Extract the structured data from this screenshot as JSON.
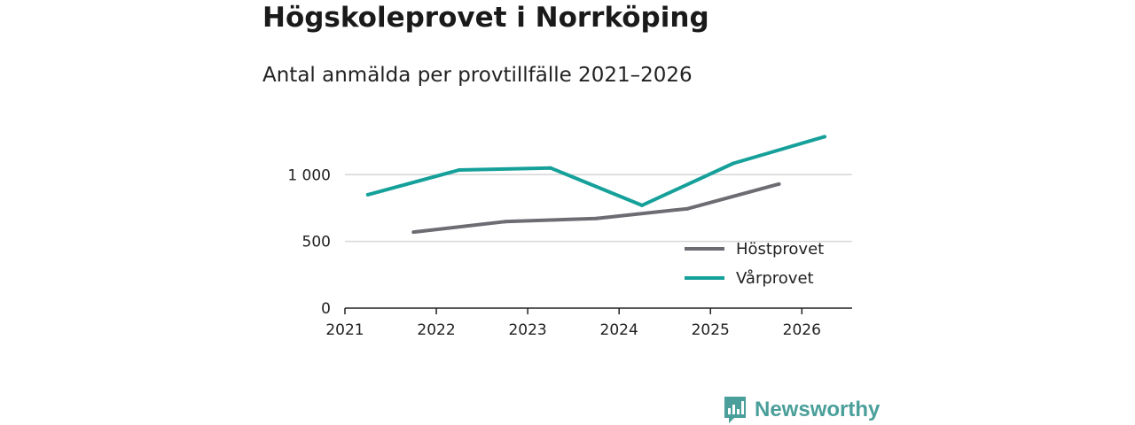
{
  "chart_data": {
    "type": "line",
    "title": "Högskoleprovet i Norrköping",
    "subtitle": "Antal anmälda per provtillfälle 2021–2026",
    "x_tick_labels": [
      "2021",
      "2022",
      "2023",
      "2024",
      "2025",
      "2026"
    ],
    "y_tick_labels": [
      "0",
      "500",
      "1 000"
    ],
    "y_ticks": [
      0,
      500,
      1000
    ],
    "ylim": [
      0,
      1380
    ],
    "xlim": [
      2021,
      2026.55
    ],
    "grid": true,
    "legend_position": "inside-right",
    "series": [
      {
        "name": "Höstprovet",
        "color": "#6d6c73",
        "points": [
          {
            "x": 2021.75,
            "y": 570
          },
          {
            "x": 2022.75,
            "y": 648
          },
          {
            "x": 2023.75,
            "y": 672
          },
          {
            "x": 2024.75,
            "y": 745
          },
          {
            "x": 2025.75,
            "y": 930
          }
        ]
      },
      {
        "name": "Vårprovet",
        "color": "#16a09a",
        "points": [
          {
            "x": 2021.25,
            "y": 850
          },
          {
            "x": 2022.25,
            "y": 1035
          },
          {
            "x": 2023.25,
            "y": 1050
          },
          {
            "x": 2024.25,
            "y": 770
          },
          {
            "x": 2025.25,
            "y": 1085
          },
          {
            "x": 2026.25,
            "y": 1285
          }
        ]
      }
    ]
  },
  "branding": {
    "name": "Newsworthy",
    "logo_icon": "bar-chart-speech-bubble-icon",
    "color": "#4a9f9a"
  }
}
